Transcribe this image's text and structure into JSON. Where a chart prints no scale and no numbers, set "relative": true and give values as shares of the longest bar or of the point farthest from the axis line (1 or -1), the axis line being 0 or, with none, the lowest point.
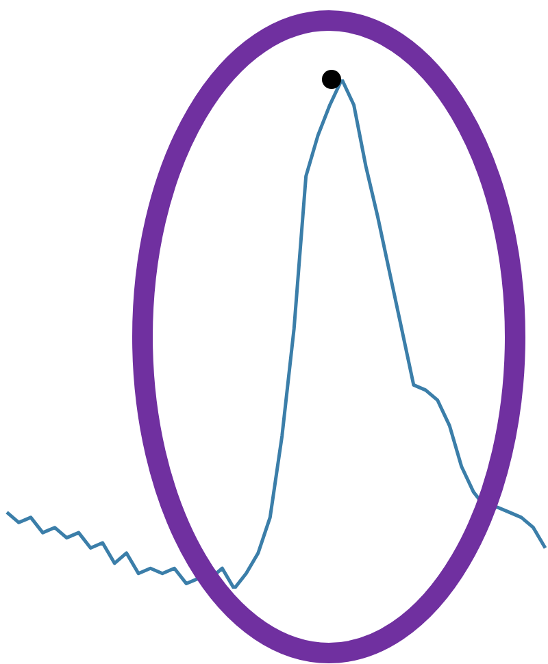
{
  "chart_data": {
    "type": "line",
    "relative": true,
    "legend": false,
    "categories": [
      null,
      null,
      null,
      null,
      null,
      null,
      null,
      null,
      null,
      null,
      null,
      null,
      null,
      null,
      null,
      null,
      null,
      null,
      null,
      null,
      null,
      null,
      null,
      null,
      null,
      null,
      null,
      null,
      null,
      null,
      null,
      null,
      null,
      null,
      null,
      null,
      null,
      null,
      null,
      null,
      null,
      null,
      null,
      null,
      null,
      null
    ],
    "series": [
      {
        "color": "#3b7ea9",
        "values": [
          0.15,
          0.13,
          0.14,
          0.11,
          0.12,
          0.1,
          0.11,
          0.08,
          0.09,
          0.05,
          0.07,
          0.03,
          0.04,
          0.03,
          0.04,
          0.01,
          0.02,
          0.02,
          0.04,
          0,
          0.03,
          0.07,
          0.14,
          0.3,
          0.51,
          0.81,
          0.89,
          0.95,
          1,
          0.95,
          0.83,
          0.73,
          0.62,
          0.51,
          0.4,
          0.39,
          0.37,
          0.32,
          0.24,
          0.19,
          0.16,
          0.16,
          0.15,
          0.14,
          0.12,
          0.08
        ]
      }
    ]
  }
}
